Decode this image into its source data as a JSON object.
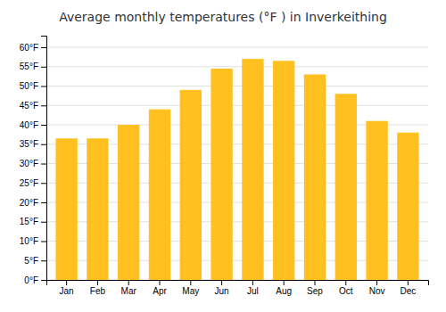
{
  "chart_data": {
    "type": "bar",
    "title": "Average monthly temperatures (°F ) in Inverkeithing",
    "categories": [
      "Jan",
      "Feb",
      "Mar",
      "Apr",
      "May",
      "Jun",
      "Jul",
      "Aug",
      "Sep",
      "Oct",
      "Nov",
      "Dec"
    ],
    "values": [
      36.5,
      36.5,
      40.0,
      44.0,
      49.0,
      54.5,
      57.0,
      56.5,
      53.0,
      48.0,
      41.0,
      38.0
    ],
    "color": "#FFC020",
    "ylim": [
      0,
      63
    ],
    "yticks": [
      {
        "value": 0,
        "label": "0°F"
      },
      {
        "value": 5,
        "label": "5°F"
      },
      {
        "value": 10,
        "label": "10°F"
      },
      {
        "value": 15,
        "label": "15°F"
      },
      {
        "value": 20,
        "label": "20°F"
      },
      {
        "value": 25,
        "label": "25°F"
      },
      {
        "value": 30,
        "label": "30°F"
      },
      {
        "value": 35,
        "label": "35°F"
      },
      {
        "value": 40,
        "label": "40°F"
      },
      {
        "value": 45,
        "label": "45°F"
      },
      {
        "value": 50,
        "label": "50°F"
      },
      {
        "value": 55,
        "label": "55°F"
      },
      {
        "value": 60,
        "label": "60°F"
      }
    ],
    "grid": true
  }
}
